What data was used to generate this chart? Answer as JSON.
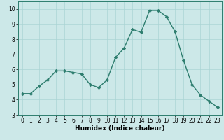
{
  "xlabel": "Humidex (Indice chaleur)",
  "ylabel": "",
  "x": [
    0,
    1,
    2,
    3,
    4,
    5,
    6,
    7,
    8,
    9,
    10,
    11,
    12,
    13,
    14,
    15,
    16,
    17,
    18,
    19,
    20,
    21,
    22,
    23
  ],
  "y": [
    4.4,
    4.4,
    4.9,
    5.3,
    5.9,
    5.9,
    5.8,
    5.7,
    5.0,
    4.8,
    5.3,
    6.8,
    7.4,
    8.65,
    8.45,
    9.9,
    9.9,
    9.5,
    8.5,
    6.6,
    5.0,
    4.3,
    3.9,
    3.5
  ],
  "line_color": "#2d7d6e",
  "marker": "D",
  "marker_size": 2.2,
  "line_width": 1.0,
  "ylim": [
    3,
    10.5
  ],
  "yticks": [
    3,
    4,
    5,
    6,
    7,
    8,
    9,
    10
  ],
  "xlim": [
    -0.5,
    23.5
  ],
  "xticks": [
    0,
    1,
    2,
    3,
    4,
    5,
    6,
    7,
    8,
    9,
    10,
    11,
    12,
    13,
    14,
    15,
    16,
    17,
    18,
    19,
    20,
    21,
    22,
    23
  ],
  "bg_color": "#cce8e8",
  "grid_color": "#aad4d4",
  "xlabel_fontsize": 6.5,
  "tick_fontsize": 5.5
}
